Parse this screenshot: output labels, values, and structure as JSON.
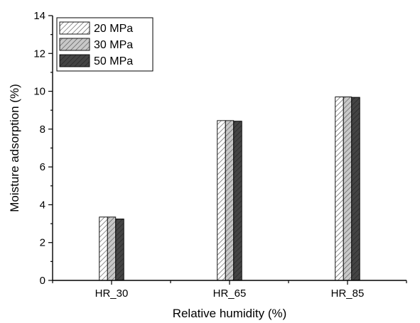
{
  "chart_data": {
    "type": "bar",
    "categories": [
      "HR_30",
      "HR_65",
      "HR_85"
    ],
    "series": [
      {
        "name": "20 MPa",
        "values": [
          3.35,
          8.45,
          9.7
        ],
        "color": "#ffffff",
        "hatch": "#555555"
      },
      {
        "name": "30 MPa",
        "values": [
          3.35,
          8.45,
          9.7
        ],
        "color": "#c8c8c8",
        "hatch": "#555555"
      },
      {
        "name": "50 MPa",
        "values": [
          3.25,
          8.42,
          9.68
        ],
        "color": "#444444",
        "hatch": "#222222"
      }
    ],
    "xlabel": "Relative humidity (%)",
    "ylabel": "Moisture adsorption (%)",
    "ylim": [
      0,
      14
    ],
    "yticks": [
      0,
      2,
      4,
      6,
      8,
      10,
      12,
      14
    ],
    "grid": false,
    "legend_position": "top-left"
  }
}
